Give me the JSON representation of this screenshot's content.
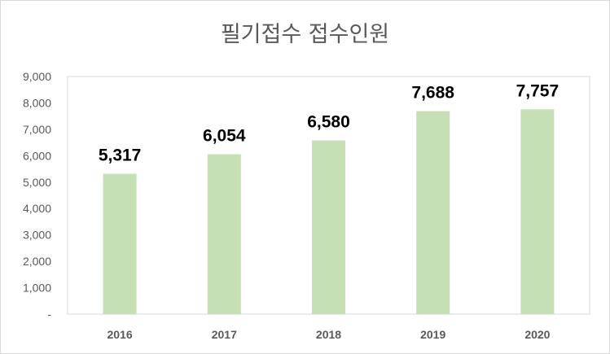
{
  "chart_data": {
    "type": "bar",
    "title": "필기접수 접수인원",
    "categories": [
      "2016",
      "2017",
      "2018",
      "2019",
      "2020"
    ],
    "values": [
      5317,
      6054,
      6580,
      7688,
      7757
    ],
    "data_labels": [
      "5,317",
      "6,054",
      "6,580",
      "7,688",
      "7,757"
    ],
    "ylim": [
      0,
      9000
    ],
    "y_ticks": [
      0,
      1000,
      2000,
      3000,
      4000,
      5000,
      6000,
      7000,
      8000,
      9000
    ],
    "y_tick_labels": [
      "-",
      "1,000",
      "2,000",
      "3,000",
      "4,000",
      "5,000",
      "6,000",
      "7,000",
      "8,000",
      "9,000"
    ],
    "xlabel": "",
    "ylabel": "",
    "grid": false,
    "legend": "none",
    "bar_color": "#c5e0b4",
    "plot_border_color": "#d9d9d9"
  }
}
